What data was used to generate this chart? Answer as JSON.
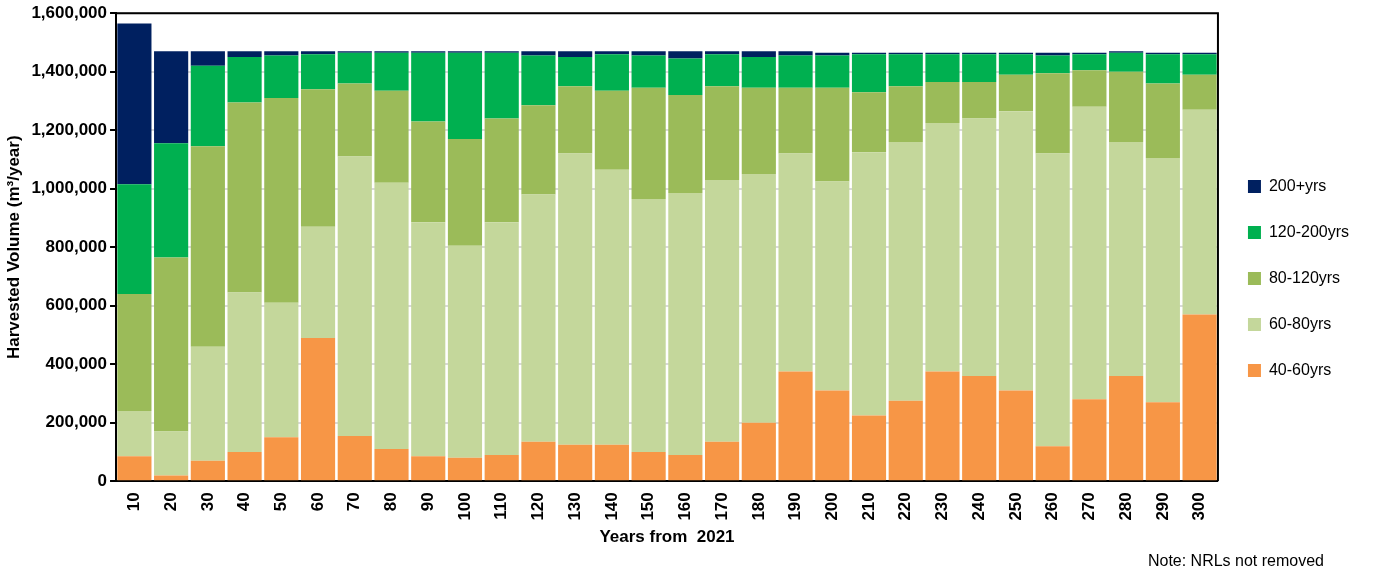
{
  "chart_data": {
    "type": "bar",
    "stacked": true,
    "ylabel": "Harvested Volume (m³/year)",
    "xlabel": "Years from  2021",
    "annotations": [
      "Note: NRLs not removed"
    ],
    "categories": [
      "10",
      "20",
      "30",
      "40",
      "50",
      "60",
      "70",
      "80",
      "90",
      "100",
      "110",
      "120",
      "130",
      "140",
      "150",
      "160",
      "170",
      "180",
      "190",
      "200",
      "210",
      "220",
      "230",
      "240",
      "250",
      "260",
      "270",
      "280",
      "290",
      "300"
    ],
    "series": [
      {
        "name": "40-60yrs",
        "color": "#f79646",
        "values": [
          85000,
          20000,
          70000,
          100000,
          150000,
          490000,
          155000,
          110000,
          85000,
          80000,
          90000,
          135000,
          125000,
          125000,
          100000,
          90000,
          135000,
          200000,
          375000,
          310000,
          225000,
          275000,
          375000,
          360000,
          310000,
          120000,
          280000,
          360000,
          270000,
          570000
        ]
      },
      {
        "name": "60-80yrs",
        "color": "#c4d79b",
        "values": [
          155000,
          150000,
          390000,
          545000,
          460000,
          380000,
          955000,
          910000,
          800000,
          725000,
          795000,
          845000,
          995000,
          940000,
          865000,
          895000,
          895000,
          850000,
          745000,
          715000,
          900000,
          885000,
          850000,
          880000,
          955000,
          1000000,
          1000000,
          800000,
          835000,
          700000
        ]
      },
      {
        "name": "80-120yrs",
        "color": "#9bbb59",
        "values": [
          400000,
          595000,
          685000,
          650000,
          700000,
          470000,
          250000,
          315000,
          345000,
          365000,
          355000,
          305000,
          230000,
          270000,
          380000,
          335000,
          320000,
          295000,
          225000,
          320000,
          205000,
          190000,
          140000,
          125000,
          125000,
          275000,
          125000,
          240000,
          255000,
          120000
        ]
      },
      {
        "name": "120-200yrs",
        "color": "#00b050",
        "values": [
          375000,
          390000,
          275000,
          155000,
          145000,
          120000,
          105000,
          130000,
          235000,
          295000,
          225000,
          170000,
          100000,
          125000,
          110000,
          125000,
          110000,
          105000,
          110000,
          110000,
          130000,
          110000,
          95000,
          95000,
          70000,
          60000,
          55000,
          65000,
          100000,
          70000
        ]
      },
      {
        "name": "200+yrs",
        "color": "#002060",
        "values": [
          550000,
          315000,
          50000,
          20000,
          15000,
          10000,
          5000,
          5000,
          5000,
          5000,
          5000,
          15000,
          20000,
          10000,
          15000,
          25000,
          10000,
          20000,
          15000,
          10000,
          5000,
          5000,
          5000,
          5000,
          5000,
          10000,
          5000,
          5000,
          5000,
          5000
        ]
      }
    ],
    "ylim": [
      0,
      1600000
    ],
    "yticks": [
      {
        "value": 0,
        "label": "0"
      },
      {
        "value": 200000,
        "label": "200,000"
      },
      {
        "value": 400000,
        "label": "400,000"
      },
      {
        "value": 600000,
        "label": "600,000"
      },
      {
        "value": 800000,
        "label": "800,000"
      },
      {
        "value": 1000000,
        "label": "1,000,000"
      },
      {
        "value": 1200000,
        "label": "1,200,000"
      },
      {
        "value": 1400000,
        "label": "1,400,000"
      },
      {
        "value": 1600000,
        "label": "1,600,000"
      }
    ],
    "grid": "y",
    "legend": "right"
  }
}
